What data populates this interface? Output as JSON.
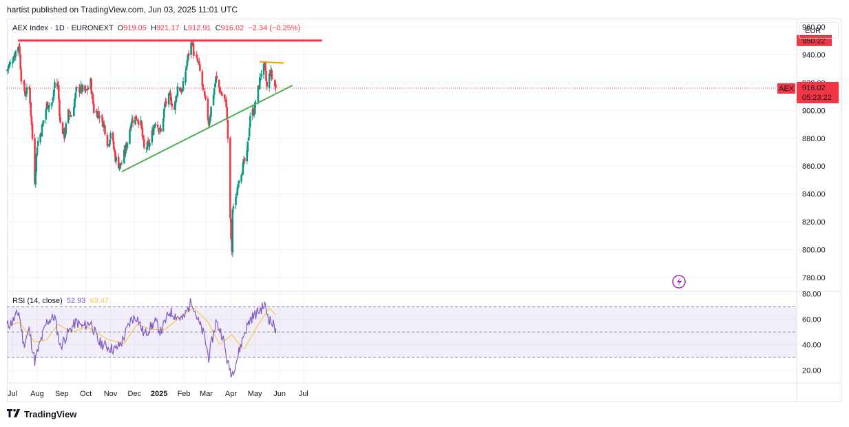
{
  "header": {
    "published": "hartist published on TradingView.com, Jun 03, 2025 11:01 UTC"
  },
  "legend": {
    "symbol": "AEX Index · 1D · EURONEXT",
    "o_label": "O",
    "o": "919.05",
    "h_label": "H",
    "h": "921.17",
    "l_label": "L",
    "l": "912.91",
    "c_label": "C",
    "c": "916.02",
    "change": "−2.34 (−0.25%)"
  },
  "currency": "EUR",
  "colors": {
    "up": "#089981",
    "down": "#f23645",
    "resistance": "#f23645",
    "trend": "#4caf50",
    "top": "#ff9800",
    "rsi": "#7e57c2",
    "rsi_ma": "#f7c948"
  },
  "price_tags": {
    "resistance": "950.22",
    "last_symbol": "AEX",
    "last": "916.02",
    "countdown": "05:23:22"
  },
  "rsi_legend": {
    "label": "RSI (14, close)",
    "value": "52.93",
    "ma": "63.47"
  },
  "footer": {
    "brand": "TradingView"
  },
  "chart_data": [
    {
      "type": "candlestick",
      "title": "AEX Index · 1D · EURONEXT",
      "ylim": [
        770,
        966
      ],
      "y_ticks": [
        "960.00",
        "940.00",
        "920.00",
        "900.00",
        "880.00",
        "860.00",
        "840.00",
        "820.00",
        "800.00",
        "780.00"
      ],
      "x_ticks": [
        "Jul",
        "Aug",
        "Sep",
        "Oct",
        "Nov",
        "Dec",
        "2025",
        "Feb",
        "Mar",
        "Apr",
        "May",
        "Jun",
        "Jul"
      ],
      "x_start": "2024-07-01",
      "anchors": [
        [
          "2024-07-01",
          929
        ],
        [
          "2024-07-08",
          937
        ],
        [
          "2024-07-16",
          948
        ],
        [
          "2024-07-19",
          924
        ],
        [
          "2024-07-24",
          912
        ],
        [
          "2024-07-29",
          916
        ],
        [
          "2024-08-02",
          880
        ],
        [
          "2024-08-05",
          850
        ],
        [
          "2024-08-08",
          876
        ],
        [
          "2024-08-13",
          885
        ],
        [
          "2024-08-20",
          904
        ],
        [
          "2024-08-27",
          905
        ],
        [
          "2024-08-30",
          920
        ],
        [
          "2024-09-03",
          917
        ],
        [
          "2024-09-06",
          890
        ],
        [
          "2024-09-11",
          882
        ],
        [
          "2024-09-16",
          898
        ],
        [
          "2024-09-20",
          896
        ],
        [
          "2024-09-26",
          914
        ],
        [
          "2024-10-01",
          916
        ],
        [
          "2024-10-08",
          913
        ],
        [
          "2024-10-14",
          920
        ],
        [
          "2024-10-18",
          900
        ],
        [
          "2024-10-24",
          898
        ],
        [
          "2024-10-31",
          889
        ],
        [
          "2024-11-05",
          875
        ],
        [
          "2024-11-08",
          885
        ],
        [
          "2024-11-14",
          866
        ],
        [
          "2024-11-19",
          860
        ],
        [
          "2024-11-22",
          862
        ],
        [
          "2024-11-28",
          875
        ],
        [
          "2024-12-04",
          893
        ],
        [
          "2024-12-11",
          895
        ],
        [
          "2024-12-16",
          890
        ],
        [
          "2024-12-20",
          872
        ],
        [
          "2024-12-27",
          876
        ],
        [
          "2025-01-03",
          893
        ],
        [
          "2025-01-10",
          884
        ],
        [
          "2025-01-15",
          904
        ],
        [
          "2025-01-21",
          910
        ],
        [
          "2025-01-27",
          901
        ],
        [
          "2025-01-31",
          917
        ],
        [
          "2025-02-06",
          914
        ],
        [
          "2025-02-12",
          936
        ],
        [
          "2025-02-18",
          950
        ],
        [
          "2025-02-21",
          938
        ],
        [
          "2025-02-26",
          934
        ],
        [
          "2025-03-03",
          918
        ],
        [
          "2025-03-07",
          905
        ],
        [
          "2025-03-11",
          891
        ],
        [
          "2025-03-14",
          902
        ],
        [
          "2025-03-20",
          923
        ],
        [
          "2025-03-26",
          913
        ],
        [
          "2025-04-02",
          905
        ],
        [
          "2025-04-04",
          880
        ],
        [
          "2025-04-07",
          820
        ],
        [
          "2025-04-09",
          796
        ],
        [
          "2025-04-10",
          830
        ],
        [
          "2025-04-14",
          835
        ],
        [
          "2025-04-17",
          850
        ],
        [
          "2025-04-23",
          860
        ],
        [
          "2025-04-28",
          868
        ],
        [
          "2025-05-02",
          897
        ],
        [
          "2025-05-07",
          900
        ],
        [
          "2025-05-12",
          915
        ],
        [
          "2025-05-16",
          928
        ],
        [
          "2025-05-20",
          931
        ],
        [
          "2025-05-23",
          916
        ],
        [
          "2025-05-27",
          928
        ],
        [
          "2025-06-03",
          916.02
        ]
      ],
      "last_bar": {
        "o": 919.05,
        "h": 921.17,
        "l": 912.91,
        "c": 916.02
      },
      "lines": [
        {
          "name": "resistance",
          "points": [
            [
              "2024-07-15",
              950.22
            ],
            [
              "2025-07-31",
              950.22
            ]
          ]
        },
        {
          "name": "trendline",
          "points": [
            [
              "2024-11-22",
              856
            ],
            [
              "2025-06-24",
              918
            ]
          ]
        },
        {
          "name": "top",
          "points": [
            [
              "2025-05-14",
              935
            ],
            [
              "2025-06-13",
              934
            ]
          ]
        }
      ]
    },
    {
      "type": "line",
      "title": "RSI (14, close)",
      "ylim": [
        10,
        82
      ],
      "y_ticks": [
        "80.00",
        "60.00",
        "40.00",
        "20.00"
      ],
      "bands": [
        70,
        50,
        30
      ],
      "series": [
        {
          "name": "RSI",
          "anchors": [
            [
              "2024-07-01",
              55
            ],
            [
              "2024-07-08",
              58
            ],
            [
              "2024-07-16",
              66
            ],
            [
              "2024-07-22",
              40
            ],
            [
              "2024-07-29",
              52
            ],
            [
              "2024-08-05",
              27
            ],
            [
              "2024-08-12",
              42
            ],
            [
              "2024-08-20",
              58
            ],
            [
              "2024-08-30",
              62
            ],
            [
              "2024-09-06",
              38
            ],
            [
              "2024-09-16",
              50
            ],
            [
              "2024-09-26",
              58
            ],
            [
              "2024-10-04",
              54
            ],
            [
              "2024-10-14",
              58
            ],
            [
              "2024-10-24",
              42
            ],
            [
              "2024-11-05",
              38
            ],
            [
              "2024-11-14",
              36
            ],
            [
              "2024-11-22",
              42
            ],
            [
              "2024-12-04",
              60
            ],
            [
              "2024-12-11",
              62
            ],
            [
              "2024-12-20",
              48
            ],
            [
              "2025-01-03",
              58
            ],
            [
              "2025-01-10",
              50
            ],
            [
              "2025-01-21",
              66
            ],
            [
              "2025-01-31",
              62
            ],
            [
              "2025-02-07",
              60
            ],
            [
              "2025-02-18",
              75
            ],
            [
              "2025-02-26",
              58
            ],
            [
              "2025-03-05",
              48
            ],
            [
              "2025-03-11",
              30
            ],
            [
              "2025-03-20",
              58
            ],
            [
              "2025-03-28",
              48
            ],
            [
              "2025-04-04",
              25
            ],
            [
              "2025-04-09",
              17
            ],
            [
              "2025-04-16",
              30
            ],
            [
              "2025-04-24",
              48
            ],
            [
              "2025-05-02",
              60
            ],
            [
              "2025-05-12",
              66
            ],
            [
              "2025-05-20",
              71
            ],
            [
              "2025-05-26",
              60
            ],
            [
              "2025-06-03",
              52.93
            ]
          ]
        },
        {
          "name": "RSI MA",
          "anchors": [
            [
              "2024-07-01",
              54
            ],
            [
              "2024-07-16",
              58
            ],
            [
              "2024-08-05",
              42
            ],
            [
              "2024-08-20",
              44
            ],
            [
              "2024-09-03",
              56
            ],
            [
              "2024-09-20",
              50
            ],
            [
              "2024-10-10",
              54
            ],
            [
              "2024-11-05",
              44
            ],
            [
              "2024-11-25",
              41
            ],
            [
              "2024-12-11",
              56
            ],
            [
              "2024-12-30",
              52
            ],
            [
              "2025-01-15",
              52
            ],
            [
              "2025-02-06",
              63
            ],
            [
              "2025-02-20",
              69
            ],
            [
              "2025-03-10",
              58
            ],
            [
              "2025-03-25",
              40
            ],
            [
              "2025-04-09",
              48
            ],
            [
              "2025-04-24",
              36
            ],
            [
              "2025-05-12",
              56
            ],
            [
              "2025-05-26",
              69
            ],
            [
              "2025-06-03",
              63.47
            ]
          ]
        }
      ]
    }
  ]
}
